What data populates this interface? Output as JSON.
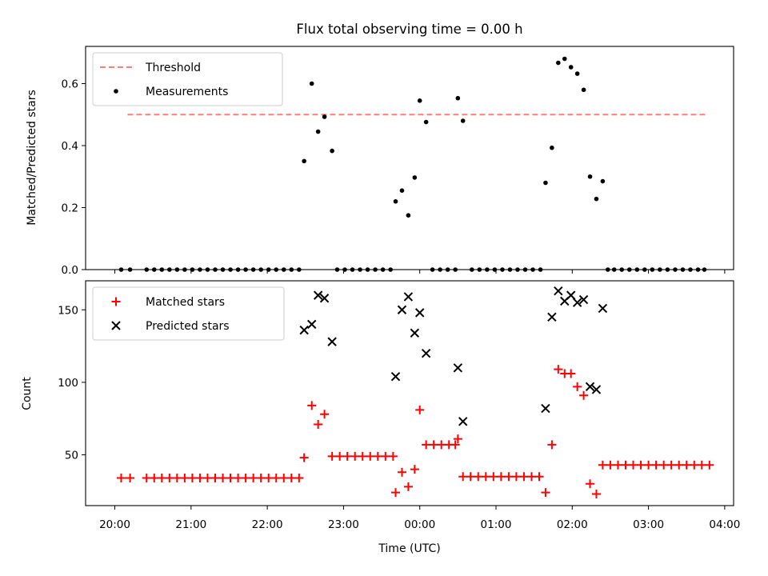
{
  "chart_data": {
    "title": "Flux total observing time = 0.00 h",
    "xlabel": "Time (UTC)",
    "x_ticks": [
      "20:00",
      "21:00",
      "22:00",
      "23:00",
      "00:00",
      "01:00",
      "02:00",
      "03:00",
      "04:00"
    ],
    "panels": [
      {
        "type": "scatter",
        "ylabel": "Matched/Predicted stars",
        "ylim": [
          0,
          0.72
        ],
        "y_ticks": [
          0.0,
          0.2,
          0.4,
          0.6
        ],
        "x_tick_labels_shown": false,
        "legend_position": "upper-left",
        "threshold": {
          "name": "Threshold",
          "value": 0.5,
          "x_start": "20:10",
          "x_end": "03:45",
          "color": "#ff7f7f",
          "style": "dashed"
        },
        "series": [
          {
            "name": "Measurements",
            "marker": "dot",
            "color": "#000000",
            "points": [
              [
                "20:05",
                0
              ],
              [
                "20:12",
                0
              ],
              [
                "20:25",
                0
              ],
              [
                "20:31",
                0
              ],
              [
                "20:37",
                0
              ],
              [
                "20:43",
                0
              ],
              [
                "20:49",
                0
              ],
              [
                "20:55",
                0
              ],
              [
                "21:01",
                0
              ],
              [
                "21:07",
                0
              ],
              [
                "21:13",
                0
              ],
              [
                "21:19",
                0
              ],
              [
                "21:25",
                0
              ],
              [
                "21:31",
                0
              ],
              [
                "21:37",
                0
              ],
              [
                "21:43",
                0
              ],
              [
                "21:49",
                0
              ],
              [
                "21:55",
                0
              ],
              [
                "22:01",
                0
              ],
              [
                "22:07",
                0
              ],
              [
                "22:13",
                0
              ],
              [
                "22:19",
                0
              ],
              [
                "22:25",
                0
              ],
              [
                "22:29",
                0.35
              ],
              [
                "22:35",
                0.6
              ],
              [
                "22:40",
                0.445
              ],
              [
                "22:45",
                0.493
              ],
              [
                "22:51",
                0.383
              ],
              [
                "22:55",
                0
              ],
              [
                "23:01",
                0
              ],
              [
                "23:07",
                0
              ],
              [
                "23:13",
                0
              ],
              [
                "23:19",
                0
              ],
              [
                "23:25",
                0
              ],
              [
                "23:31",
                0
              ],
              [
                "23:37",
                0
              ],
              [
                "23:41",
                0.22
              ],
              [
                "23:46",
                0.255
              ],
              [
                "23:51",
                0.175
              ],
              [
                "23:56",
                0.297
              ],
              [
                "00:00",
                0.545
              ],
              [
                "00:05",
                0.476
              ],
              [
                "00:10",
                0
              ],
              [
                "00:16",
                0
              ],
              [
                "00:22",
                0
              ],
              [
                "00:28",
                0
              ],
              [
                "00:30",
                0.553
              ],
              [
                "00:34",
                0.48
              ],
              [
                "00:41",
                0
              ],
              [
                "00:47",
                0
              ],
              [
                "00:53",
                0
              ],
              [
                "00:59",
                0
              ],
              [
                "01:05",
                0
              ],
              [
                "01:11",
                0
              ],
              [
                "01:17",
                0
              ],
              [
                "01:23",
                0
              ],
              [
                "01:29",
                0
              ],
              [
                "01:35",
                0
              ],
              [
                "01:39",
                0.28
              ],
              [
                "01:44",
                0.393
              ],
              [
                "01:49",
                0.667
              ],
              [
                "01:54",
                0.68
              ],
              [
                "01:59",
                0.653
              ],
              [
                "02:04",
                0.632
              ],
              [
                "02:09",
                0.58
              ],
              [
                "02:14",
                0.3
              ],
              [
                "02:19",
                0.228
              ],
              [
                "02:24",
                0.285
              ],
              [
                "02:28",
                0
              ],
              [
                "02:33",
                0
              ],
              [
                "02:39",
                0
              ],
              [
                "02:45",
                0
              ],
              [
                "02:51",
                0
              ],
              [
                "02:57",
                0
              ],
              [
                "03:03",
                0
              ],
              [
                "03:09",
                0
              ],
              [
                "03:15",
                0
              ],
              [
                "03:21",
                0
              ],
              [
                "03:27",
                0
              ],
              [
                "03:33",
                0
              ],
              [
                "03:39",
                0
              ],
              [
                "03:44",
                0
              ]
            ]
          }
        ]
      },
      {
        "type": "scatter",
        "ylabel": "Count",
        "ylim": [
          15,
          170
        ],
        "y_ticks": [
          50,
          100,
          150
        ],
        "legend_position": "upper-left",
        "series": [
          {
            "name": "Matched stars",
            "marker": "plus",
            "color": "#ff0000",
            "points": [
              [
                "20:05",
                34
              ],
              [
                "20:12",
                34
              ],
              [
                "20:25",
                34
              ],
              [
                "20:31",
                34
              ],
              [
                "20:37",
                34
              ],
              [
                "20:43",
                34
              ],
              [
                "20:49",
                34
              ],
              [
                "20:55",
                34
              ],
              [
                "21:01",
                34
              ],
              [
                "21:07",
                34
              ],
              [
                "21:13",
                34
              ],
              [
                "21:19",
                34
              ],
              [
                "21:25",
                34
              ],
              [
                "21:31",
                34
              ],
              [
                "21:37",
                34
              ],
              [
                "21:43",
                34
              ],
              [
                "21:49",
                34
              ],
              [
                "21:55",
                34
              ],
              [
                "22:01",
                34
              ],
              [
                "22:07",
                34
              ],
              [
                "22:13",
                34
              ],
              [
                "22:19",
                34
              ],
              [
                "22:25",
                34
              ],
              [
                "22:29",
                48
              ],
              [
                "22:35",
                84
              ],
              [
                "22:40",
                71
              ],
              [
                "22:45",
                78
              ],
              [
                "22:51",
                49
              ],
              [
                "22:57",
                49
              ],
              [
                "23:03",
                49
              ],
              [
                "23:09",
                49
              ],
              [
                "23:15",
                49
              ],
              [
                "23:21",
                49
              ],
              [
                "23:27",
                49
              ],
              [
                "23:33",
                49
              ],
              [
                "23:39",
                49
              ],
              [
                "23:41",
                24
              ],
              [
                "23:46",
                38
              ],
              [
                "23:51",
                28
              ],
              [
                "23:56",
                40
              ],
              [
                "00:00",
                81
              ],
              [
                "00:05",
                57
              ],
              [
                "00:11",
                57
              ],
              [
                "00:17",
                57
              ],
              [
                "00:23",
                57
              ],
              [
                "00:28",
                57
              ],
              [
                "00:30",
                61
              ],
              [
                "00:34",
                35
              ],
              [
                "00:40",
                35
              ],
              [
                "00:46",
                35
              ],
              [
                "00:52",
                35
              ],
              [
                "00:58",
                35
              ],
              [
                "01:04",
                35
              ],
              [
                "01:10",
                35
              ],
              [
                "01:16",
                35
              ],
              [
                "01:22",
                35
              ],
              [
                "01:28",
                35
              ],
              [
                "01:34",
                35
              ],
              [
                "01:39",
                24
              ],
              [
                "01:44",
                57
              ],
              [
                "01:49",
                109
              ],
              [
                "01:54",
                106
              ],
              [
                "01:59",
                106
              ],
              [
                "02:04",
                97
              ],
              [
                "02:09",
                91
              ],
              [
                "02:14",
                30
              ],
              [
                "02:19",
                23
              ],
              [
                "02:24",
                43
              ],
              [
                "02:30",
                43
              ],
              [
                "02:36",
                43
              ],
              [
                "02:42",
                43
              ],
              [
                "02:48",
                43
              ],
              [
                "02:54",
                43
              ],
              [
                "03:00",
                43
              ],
              [
                "03:06",
                43
              ],
              [
                "03:12",
                43
              ],
              [
                "03:18",
                43
              ],
              [
                "03:24",
                43
              ],
              [
                "03:30",
                43
              ],
              [
                "03:36",
                43
              ],
              [
                "03:42",
                43
              ],
              [
                "03:48",
                43
              ]
            ]
          },
          {
            "name": "Predicted stars",
            "marker": "x",
            "color": "#000000",
            "points": [
              [
                "22:29",
                136
              ],
              [
                "22:35",
                140
              ],
              [
                "22:40",
                160
              ],
              [
                "22:45",
                158
              ],
              [
                "22:51",
                128
              ],
              [
                "23:41",
                104
              ],
              [
                "23:46",
                150
              ],
              [
                "23:51",
                159
              ],
              [
                "23:56",
                134
              ],
              [
                "00:00",
                148
              ],
              [
                "00:05",
                120
              ],
              [
                "00:30",
                110
              ],
              [
                "00:34",
                73
              ],
              [
                "01:39",
                82
              ],
              [
                "01:44",
                145
              ],
              [
                "01:49",
                163
              ],
              [
                "01:54",
                156
              ],
              [
                "01:59",
                160
              ],
              [
                "02:04",
                155
              ],
              [
                "02:09",
                157
              ],
              [
                "02:14",
                97
              ],
              [
                "02:19",
                95
              ],
              [
                "02:24",
                151
              ]
            ]
          }
        ]
      }
    ]
  }
}
